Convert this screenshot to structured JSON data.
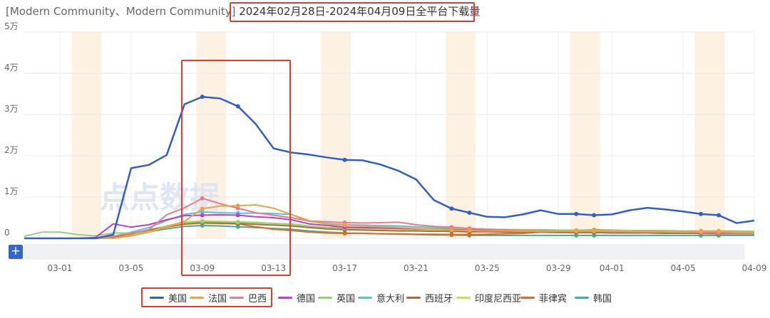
{
  "header": {
    "app_name": "[Modern Community、Modern Community]",
    "date_range": "2024年02月28日-2024年04月09日全平台下载量"
  },
  "watermark": "点点数据",
  "zoom": {
    "plus_label": "+"
  },
  "chart_data": {
    "type": "line",
    "title": "2024年02月28日-2024年04月09日全平台下载量",
    "xlabel": "",
    "ylabel": "",
    "ylim": [
      0,
      50000
    ],
    "y_ticks": [
      {
        "value": 0,
        "label": "0"
      },
      {
        "value": 10000,
        "label": "1万"
      },
      {
        "value": 20000,
        "label": "2万"
      },
      {
        "value": 30000,
        "label": "3万"
      },
      {
        "value": 40000,
        "label": "4万"
      },
      {
        "value": 50000,
        "label": "5万"
      }
    ],
    "x_tick_labels": [
      "03-01",
      "03-05",
      "03-09",
      "03-13",
      "03-17",
      "03-21",
      "03-25",
      "03-29",
      "04-01",
      "04-05",
      "04-09"
    ],
    "x_tick_days": [
      2,
      6,
      10,
      14,
      18,
      22,
      26,
      30,
      33,
      37,
      41
    ],
    "weekend_bands": [
      [
        "03-02",
        "03-03"
      ],
      [
        "03-09",
        "03-10"
      ],
      [
        "03-16",
        "03-17"
      ],
      [
        "03-23",
        "03-24"
      ],
      [
        "03-30",
        "03-31"
      ],
      [
        "04-06",
        "04-07"
      ]
    ],
    "grid": true,
    "legend_position": "bottom",
    "x": [
      "02-28",
      "02-29",
      "03-01",
      "03-02",
      "03-03",
      "03-04",
      "03-05",
      "03-06",
      "03-07",
      "03-08",
      "03-09",
      "03-10",
      "03-11",
      "03-12",
      "03-13",
      "03-14",
      "03-15",
      "03-16",
      "03-17",
      "03-18",
      "03-19",
      "03-20",
      "03-21",
      "03-22",
      "03-23",
      "03-24",
      "03-25",
      "03-26",
      "03-27",
      "03-28",
      "03-29",
      "03-30",
      "03-31",
      "04-01",
      "04-02",
      "04-03",
      "04-04",
      "04-05",
      "04-06",
      "04-07",
      "04-08",
      "04-09"
    ],
    "series": [
      {
        "name": "美国",
        "color": "#2f5fcf",
        "values": [
          0,
          0,
          0,
          0,
          0,
          900,
          17000,
          17800,
          20200,
          32500,
          34300,
          33900,
          32000,
          27700,
          21800,
          20800,
          20300,
          19600,
          19000,
          18900,
          17900,
          16400,
          14300,
          9300,
          7200,
          6200,
          5200,
          5100,
          5800,
          6800,
          5900,
          5900,
          5600,
          5800,
          6800,
          7400,
          7000,
          6500,
          5900,
          5600,
          3700,
          4300
        ]
      },
      {
        "name": "法国",
        "color": "#f0a33c",
        "values": [
          0,
          0,
          0,
          0,
          0,
          0,
          600,
          1500,
          2800,
          4100,
          7200,
          7800,
          7900,
          8100,
          7300,
          5800,
          4300,
          3400,
          3200,
          3000,
          2800,
          2600,
          2400,
          2200,
          2000,
          1900,
          1800,
          1800,
          1700,
          1700,
          1700,
          1800,
          1800,
          1800,
          1700,
          1700,
          1600,
          1600,
          1700,
          1700,
          1500,
          1400
        ]
      },
      {
        "name": "巴西",
        "color": "#ec7b8a",
        "values": [
          0,
          0,
          0,
          0,
          0,
          500,
          1200,
          2100,
          5700,
          7400,
          9700,
          8400,
          7300,
          6200,
          5600,
          5000,
          4200,
          4000,
          3800,
          3700,
          3800,
          3900,
          3300,
          2900,
          2700,
          2400,
          2200,
          2100,
          1900,
          1800,
          1700,
          1700,
          1700,
          1600,
          1600,
          1500,
          1500,
          1400,
          1400,
          1300,
          1200,
          1200
        ]
      },
      {
        "name": "德国",
        "color": "#c23bd4",
        "values": [
          0,
          0,
          0,
          0,
          200,
          3500,
          2700,
          3300,
          4500,
          5500,
          5600,
          5700,
          5600,
          5200,
          5000,
          4500,
          3500,
          3100,
          2700,
          2600,
          2500,
          2400,
          2300,
          2200,
          2100,
          2000,
          1900,
          1900,
          1800,
          1800,
          1700,
          1700,
          1700,
          1600,
          1600,
          1500,
          1500,
          1500,
          1400,
          1400,
          1300,
          1300
        ]
      },
      {
        "name": "英国",
        "color": "#8fd47a",
        "values": [
          500,
          1500,
          1500,
          900,
          600,
          1300,
          1300,
          1500,
          3000,
          3800,
          4100,
          4000,
          3900,
          3800,
          3600,
          3500,
          3000,
          2600,
          2500,
          2500,
          2500,
          2400,
          2300,
          2300,
          2200,
          2200,
          2200,
          2100,
          2100,
          2100,
          2000,
          2000,
          2000,
          2000,
          1900,
          1900,
          1900,
          1800,
          1800,
          1800,
          1800,
          1700
        ]
      },
      {
        "name": "意大利",
        "color": "#4cc7e6",
        "values": [
          0,
          0,
          0,
          0,
          0,
          500,
          1500,
          2600,
          4300,
          5800,
          6400,
          6200,
          6100,
          6100,
          6000,
          5800,
          4100,
          3600,
          3300,
          3200,
          3100,
          3000,
          2800,
          2600,
          2400,
          2300,
          2200,
          2100,
          2000,
          2000,
          1900,
          1800,
          1800,
          1700,
          1700,
          1600,
          1600,
          1500,
          1500,
          1400,
          1400,
          1300
        ]
      },
      {
        "name": "西班牙",
        "color": "#a0703a",
        "values": [
          0,
          0,
          0,
          0,
          0,
          300,
          1100,
          2000,
          2900,
          3700,
          3900,
          3800,
          3600,
          3400,
          3200,
          3000,
          2600,
          2300,
          2100,
          2000,
          1900,
          1800,
          1800,
          1700,
          1700,
          1600,
          1600,
          1500,
          1500,
          1500,
          1400,
          1400,
          1400,
          1300,
          1300,
          1300,
          1200,
          1200,
          1200,
          1100,
          1100,
          1100
        ]
      },
      {
        "name": "印度尼西亚",
        "color": "#cfe04c",
        "values": [
          0,
          0,
          0,
          0,
          0,
          300,
          900,
          1800,
          3000,
          4000,
          4200,
          4100,
          4000,
          3900,
          3600,
          3300,
          2800,
          2500,
          2300,
          2200,
          2100,
          2000,
          1900,
          1800,
          1800,
          1700,
          1700,
          1600,
          1600,
          1600,
          1500,
          1500,
          1500,
          1400,
          1400,
          1400,
          1300,
          1300,
          1300,
          1200,
          1200,
          1100
        ]
      },
      {
        "name": "菲律宾",
        "color": "#e8661e",
        "values": [
          0,
          0,
          0,
          0,
          0,
          200,
          600,
          1500,
          2700,
          3400,
          3700,
          3600,
          3500,
          2800,
          2200,
          1900,
          1500,
          1300,
          1200,
          1200,
          1100,
          1100,
          1000,
          1000,
          900,
          900,
          1000,
          1100,
          1200,
          1500,
          1700,
          1900,
          2100,
          2000,
          1800,
          1700,
          1600,
          1500,
          1400,
          1300,
          1200,
          1100
        ]
      },
      {
        "name": "韩国",
        "color": "#36b3a0",
        "values": [
          0,
          0,
          0,
          0,
          0,
          200,
          1000,
          1600,
          2300,
          2900,
          3100,
          3000,
          2800,
          2600,
          2400,
          2200,
          1800,
          1500,
          1300,
          1200,
          1100,
          1000,
          900,
          800,
          800,
          700,
          700,
          700,
          700,
          700,
          700,
          700,
          700,
          700,
          700,
          700,
          700,
          700,
          700,
          700,
          700,
          700
        ]
      }
    ],
    "highlighted_days": [
      10,
      12,
      18,
      24,
      25,
      31,
      32,
      38,
      39
    ]
  }
}
